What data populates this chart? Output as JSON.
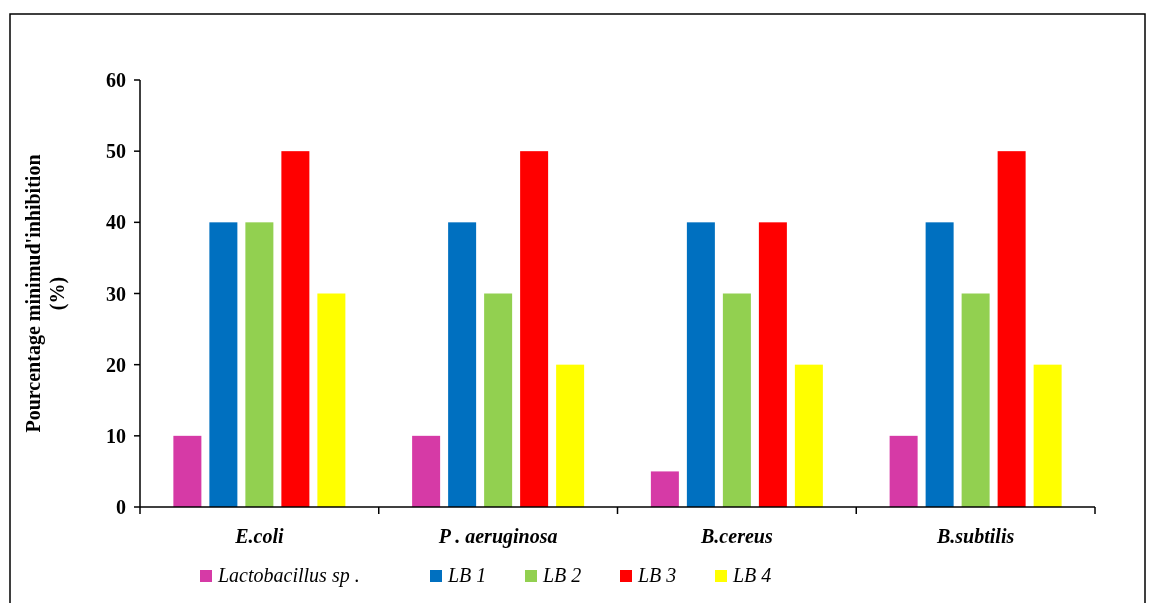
{
  "chart_data": {
    "type": "bar",
    "ylabel": "Pourcentage  minimud'inhibition (%)",
    "categories": [
      "E.coli",
      "P . aeruginosa",
      "B.cereus",
      "B.subtilis"
    ],
    "series": [
      {
        "name": "Lactobacillus sp .",
        "color": "#d63aa6",
        "values": [
          10,
          10,
          5,
          10
        ]
      },
      {
        "name": "LB 1",
        "color": "#0070c0",
        "values": [
          40,
          40,
          40,
          40
        ]
      },
      {
        "name": "LB 2",
        "color": "#92d050",
        "values": [
          40,
          30,
          30,
          30
        ]
      },
      {
        "name": "LB 3",
        "color": "#ff0000",
        "values": [
          50,
          50,
          40,
          50
        ]
      },
      {
        "name": "LB 4",
        "color": "#ffff00",
        "values": [
          30,
          20,
          20,
          20
        ]
      }
    ],
    "ylim": [
      0,
      60
    ],
    "yticks": [
      0,
      10,
      20,
      30,
      40,
      50,
      60
    ],
    "legend": "bottom",
    "grid": false
  }
}
